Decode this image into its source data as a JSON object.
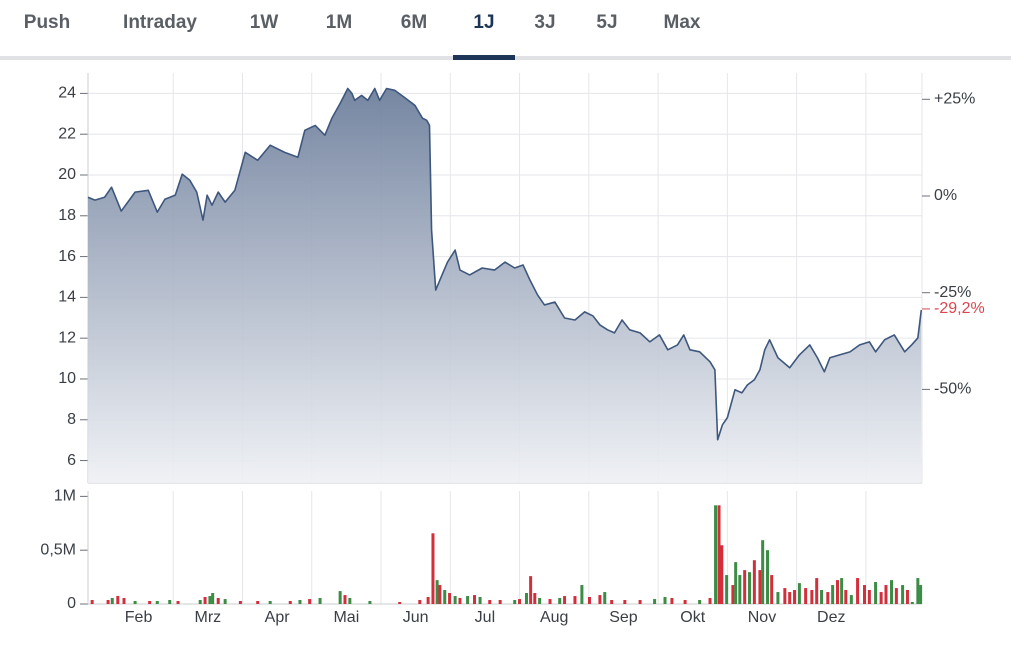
{
  "tabs": [
    "Push",
    "Intraday",
    "1W",
    "1M",
    "6M",
    "1J",
    "3J",
    "5J",
    "Max"
  ],
  "active_tab": 5,
  "chart_data": [
    {
      "type": "area",
      "x": [
        0.77,
        0.87,
        1.01,
        1.11,
        1.25,
        1.45,
        1.64,
        1.77,
        1.88,
        2.03,
        2.13,
        2.24,
        2.34,
        2.43,
        2.49,
        2.56,
        2.65,
        2.75,
        2.89,
        3.04,
        3.22,
        3.4,
        3.61,
        3.8,
        3.9,
        4.05,
        4.19,
        4.29,
        4.41,
        4.52,
        4.58,
        4.62,
        4.72,
        4.81,
        4.91,
        4.98,
        5.08,
        5.2,
        5.34,
        5.49,
        5.6,
        5.66,
        5.7,
        5.73,
        5.79,
        5.85,
        5.96,
        6.07,
        6.14,
        6.28,
        6.46,
        6.64,
        6.79,
        6.93,
        7.05,
        7.15,
        7.26,
        7.36,
        7.51,
        7.65,
        7.8,
        7.94,
        8.06,
        8.16,
        8.27,
        8.37,
        8.48,
        8.59,
        8.74,
        8.88,
        9.02,
        9.14,
        9.28,
        9.37,
        9.46,
        9.6,
        9.75,
        9.82,
        9.86,
        9.93,
        10.0,
        10.11,
        10.21,
        10.29,
        10.39,
        10.47,
        10.54,
        10.61,
        10.73,
        10.9,
        11.04,
        11.19,
        11.3,
        11.4,
        11.48,
        11.62,
        11.77,
        11.91,
        12.05,
        12.14,
        12.27,
        12.41,
        12.56,
        12.66,
        12.75,
        12.8
      ],
      "values": [
        18.91,
        18.77,
        18.91,
        19.4,
        18.23,
        19.16,
        19.25,
        18.18,
        18.81,
        19.01,
        20.04,
        19.74,
        19.16,
        17.79,
        19.01,
        18.52,
        19.16,
        18.67,
        19.25,
        21.11,
        20.72,
        21.46,
        21.11,
        20.87,
        22.19,
        22.43,
        21.95,
        22.78,
        23.51,
        24.24,
        24.0,
        23.66,
        23.9,
        23.66,
        24.24,
        23.66,
        24.24,
        24.15,
        23.8,
        23.41,
        22.78,
        22.68,
        22.43,
        17.3,
        14.36,
        14.85,
        15.73,
        16.32,
        15.34,
        15.1,
        15.44,
        15.34,
        15.73,
        15.44,
        15.59,
        14.85,
        14.12,
        13.63,
        13.77,
        12.99,
        12.89,
        13.29,
        13.09,
        12.65,
        12.41,
        12.26,
        12.89,
        12.41,
        12.26,
        11.82,
        12.16,
        11.43,
        11.67,
        12.16,
        11.43,
        11.33,
        10.84,
        10.45,
        7.02,
        7.76,
        8.1,
        9.47,
        9.32,
        9.71,
        9.96,
        10.45,
        11.43,
        11.92,
        11.04,
        10.55,
        11.18,
        11.67,
        11.04,
        10.35,
        11.04,
        11.18,
        11.33,
        11.67,
        11.82,
        11.33,
        11.92,
        12.16,
        11.33,
        11.67,
        12.01,
        13.38
      ],
      "color": "#3e577d",
      "xlim": [
        0.77,
        12.81
      ],
      "xgrid": [
        2,
        3,
        4,
        5,
        6,
        7,
        8,
        9,
        10,
        11,
        12
      ],
      "ylim": [
        4.9,
        25
      ],
      "yticks": [
        6,
        8,
        10,
        12,
        14,
        16,
        18,
        20,
        22,
        24
      ],
      "y2lim": [
        -74.2,
        31.8
      ],
      "y2ticks": [
        {
          "value": 25,
          "label": "+25%"
        },
        {
          "value": 0,
          "label": "0%"
        },
        {
          "value": -25,
          "label": "-25%"
        },
        {
          "value": -50,
          "label": "-50%"
        }
      ],
      "last_change": {
        "value": -29.2,
        "label": "-29,2%",
        "color": "#d9464f"
      },
      "grid": true
    },
    {
      "type": "bar",
      "x": [
        0.83,
        1.06,
        1.12,
        1.2,
        1.29,
        1.45,
        1.66,
        1.77,
        1.95,
        2.07,
        2.39,
        2.46,
        2.53,
        2.57,
        2.65,
        2.75,
        2.97,
        3.22,
        3.4,
        3.69,
        3.83,
        3.97,
        4.12,
        4.41,
        4.48,
        4.55,
        4.84,
        5.27,
        5.56,
        5.68,
        5.75,
        5.81,
        5.85,
        5.92,
        5.99,
        6.07,
        6.14,
        6.25,
        6.35,
        6.43,
        6.57,
        6.72,
        6.93,
        7.0,
        7.1,
        7.16,
        7.22,
        7.29,
        7.44,
        7.58,
        7.65,
        7.8,
        7.9,
        8.01,
        8.16,
        8.23,
        8.33,
        8.52,
        8.74,
        8.95,
        9.1,
        9.2,
        9.39,
        9.6,
        9.75,
        9.83,
        9.88,
        9.92,
        9.99,
        10.08,
        10.12,
        10.18,
        10.25,
        10.32,
        10.39,
        10.47,
        10.51,
        10.58,
        10.64,
        10.73,
        10.83,
        10.9,
        10.97,
        11.04,
        11.13,
        11.22,
        11.29,
        11.36,
        11.45,
        11.52,
        11.59,
        11.65,
        11.71,
        11.79,
        11.88,
        11.98,
        12.05,
        12.14,
        12.22,
        12.29,
        12.37,
        12.44,
        12.53,
        12.6,
        12.67,
        12.75,
        12.79
      ],
      "values": [
        37000,
        37000,
        56000,
        74000,
        56000,
        28000,
        28000,
        28000,
        37000,
        28000,
        37000,
        65000,
        74000,
        102000,
        56000,
        46000,
        28000,
        28000,
        28000,
        28000,
        37000,
        46000,
        56000,
        120000,
        83000,
        56000,
        28000,
        19000,
        37000,
        65000,
        657000,
        222000,
        176000,
        130000,
        102000,
        74000,
        56000,
        74000,
        83000,
        65000,
        37000,
        37000,
        37000,
        46000,
        102000,
        259000,
        102000,
        56000,
        46000,
        56000,
        74000,
        74000,
        176000,
        65000,
        83000,
        111000,
        37000,
        37000,
        37000,
        46000,
        65000,
        56000,
        37000,
        37000,
        56000,
        917000,
        917000,
        546000,
        269000,
        176000,
        389000,
        269000,
        315000,
        296000,
        407000,
        315000,
        593000,
        500000,
        269000,
        111000,
        148000,
        111000,
        130000,
        194000,
        148000,
        130000,
        241000,
        130000,
        111000,
        176000,
        222000,
        241000,
        130000,
        83000,
        241000,
        176000,
        130000,
        204000,
        111000,
        176000,
        222000,
        148000,
        176000,
        130000,
        19000,
        241000,
        176000
      ],
      "colors": [
        "#d22f3c",
        "#d22f3c",
        "#3c8c46",
        "#d22f3c",
        "#d22f3c",
        "#3c8c46",
        "#d22f3c",
        "#3c8c46",
        "#3c8c46",
        "#d22f3c",
        "#3c8c46",
        "#d22f3c",
        "#3c8c46",
        "#3c8c46",
        "#d22f3c",
        "#3c8c46",
        "#d22f3c",
        "#d22f3c",
        "#3c8c46",
        "#d22f3c",
        "#3c8c46",
        "#d22f3c",
        "#3c8c46",
        "#3c8c46",
        "#d22f3c",
        "#3c8c46",
        "#3c8c46",
        "#d22f3c",
        "#d22f3c",
        "#d22f3c",
        "#d22f3c",
        "#3c8c46",
        "#d22f3c",
        "#3c8c46",
        "#d22f3c",
        "#3c8c46",
        "#d22f3c",
        "#3c8c46",
        "#d22f3c",
        "#3c8c46",
        "#d22f3c",
        "#d22f3c",
        "#3c8c46",
        "#d22f3c",
        "#3c8c46",
        "#d22f3c",
        "#d22f3c",
        "#3c8c46",
        "#d22f3c",
        "#3c8c46",
        "#d22f3c",
        "#d22f3c",
        "#3c8c46",
        "#d22f3c",
        "#d22f3c",
        "#3c8c46",
        "#d22f3c",
        "#d22f3c",
        "#d22f3c",
        "#3c8c46",
        "#3c8c46",
        "#d22f3c",
        "#d22f3c",
        "#3c8c46",
        "#d22f3c",
        "#3c8c46",
        "#d22f3c",
        "#d22f3c",
        "#3c8c46",
        "#d22f3c",
        "#3c8c46",
        "#3c8c46",
        "#d22f3c",
        "#3c8c46",
        "#d22f3c",
        "#d22f3c",
        "#3c8c46",
        "#3c8c46",
        "#d22f3c",
        "#3c8c46",
        "#d22f3c",
        "#d22f3c",
        "#d22f3c",
        "#3c8c46",
        "#d22f3c",
        "#d22f3c",
        "#d22f3c",
        "#3c8c46",
        "#d22f3c",
        "#3c8c46",
        "#d22f3c",
        "#3c8c46",
        "#d22f3c",
        "#3c8c46",
        "#d22f3c",
        "#d22f3c",
        "#d22f3c",
        "#3c8c46",
        "#d22f3c",
        "#d22f3c",
        "#3c8c46",
        "#d22f3c",
        "#3c8c46",
        "#d22f3c",
        "#3c8c46",
        "#3c8c46",
        "#3c8c46"
      ],
      "xlim": [
        0.77,
        12.81
      ],
      "xgrid": [
        2,
        3,
        4,
        5,
        6,
        7,
        8,
        9,
        10,
        11,
        12
      ],
      "xticks": [
        {
          "value": 1.5,
          "label": "Feb"
        },
        {
          "value": 2.5,
          "label": "Mrz"
        },
        {
          "value": 3.5,
          "label": "Apr"
        },
        {
          "value": 4.5,
          "label": "Mai"
        },
        {
          "value": 5.5,
          "label": "Jun"
        },
        {
          "value": 6.5,
          "label": "Jul"
        },
        {
          "value": 7.5,
          "label": "Aug"
        },
        {
          "value": 8.5,
          "label": "Sep"
        },
        {
          "value": 9.5,
          "label": "Okt"
        },
        {
          "value": 10.5,
          "label": "Nov"
        },
        {
          "value": 11.5,
          "label": "Dez"
        }
      ],
      "ylim": [
        0,
        1050000
      ],
      "yticks": [
        0,
        {
          "value": 500000,
          "label": "0,5M"
        },
        {
          "value": 1000000,
          "label": "1M"
        }
      ],
      "grid": false
    }
  ]
}
